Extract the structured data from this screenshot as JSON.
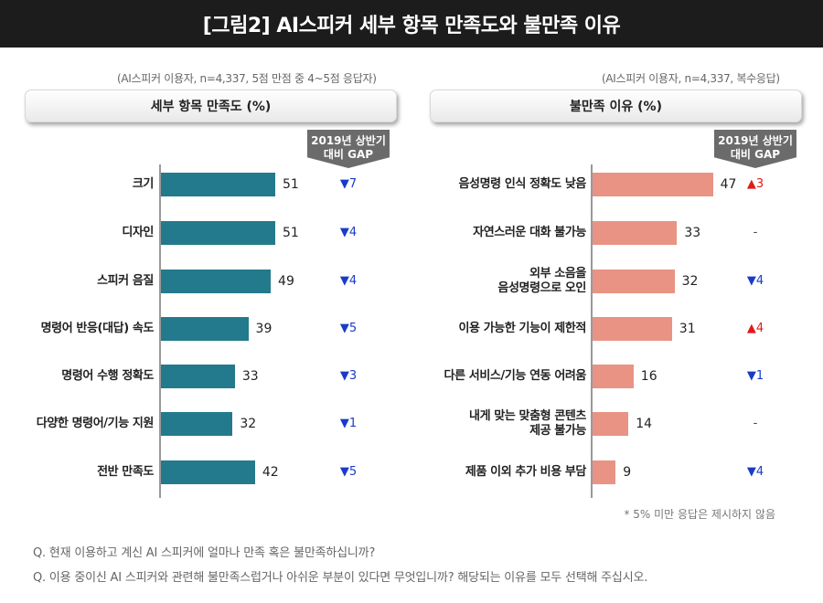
{
  "title": "[그림2] AI스피커 세부 항목 만족도와 불만족 이유",
  "colors": {
    "left_bar": "#237a8c",
    "right_bar": "#e89384",
    "down": "#1a3bc8",
    "up": "#e01a1a",
    "neutral": "#444444"
  },
  "gap_badge": {
    "line1": "2019년 상반기",
    "line2": "대비 GAP"
  },
  "footnote": "* 5% 미만 응답은 제시하지 않음",
  "questions": [
    "Q. 현재 이용하고 계신 AI 스피커에 얼마나 만족 혹은 불만족하십니까?",
    "Q. 이용 중이신 AI 스피커와 관련해 불만족스럽거나 아쉬운 부분이 있다면 무엇입니까? 해당되는 이유를 모두 선택해 주십시오."
  ],
  "chart_data": [
    {
      "type": "bar",
      "orientation": "horizontal",
      "note": "(AI스피커 이용자, n=4,337, 5점 만점 중 4~5점 응답자)",
      "title": "세부 항목 만족도 (%)",
      "categories": [
        "크기",
        "디자인",
        "스피커 음질",
        "명령어 반응(대답) 속도",
        "명령어 수행 정확도",
        "다양한 명령어/기능 지원",
        "전반 만족도"
      ],
      "values": [
        51,
        51,
        49,
        39,
        33,
        32,
        42
      ],
      "gap": [
        "▼7",
        "▼4",
        "▼4",
        "▼5",
        "▼3",
        "▼1",
        "▼5"
      ],
      "gap_direction": [
        "down",
        "down",
        "down",
        "down",
        "down",
        "down",
        "down"
      ]
    },
    {
      "type": "bar",
      "orientation": "horizontal",
      "note": "(AI스피커 이용자, n=4,337, 복수응답)",
      "title": "불만족 이유 (%)",
      "categories": [
        "음성명령 인식 정확도 낮음",
        "자연스러운 대화 불가능",
        "외부 소음을 음성명령으로 오인",
        "이용 가능한 기능이 제한적",
        "다른 서비스/기능 연동 어려움",
        "내게 맞는 맞춤형 콘텐츠 제공 불가능",
        "제품 이외 추가 비용 부담"
      ],
      "category_lines": [
        [
          "음성명령 인식 정확도 낮음"
        ],
        [
          "자연스러운 대화 불가능"
        ],
        [
          "외부 소음을",
          "음성명령으로 오인"
        ],
        [
          "이용 가능한 기능이 제한적"
        ],
        [
          "다른 서비스/기능 연동 어려움"
        ],
        [
          "내게 맞는 맞춤형 콘텐츠",
          "제공 불가능"
        ],
        [
          "제품 이외 추가 비용 부담"
        ]
      ],
      "values": [
        47,
        33,
        32,
        31,
        16,
        14,
        9
      ],
      "gap": [
        "▲3",
        "-",
        "▼4",
        "▲4",
        "▼1",
        "-",
        "▼4"
      ],
      "gap_direction": [
        "up",
        "neutral",
        "down",
        "up",
        "down",
        "neutral",
        "down"
      ]
    }
  ]
}
